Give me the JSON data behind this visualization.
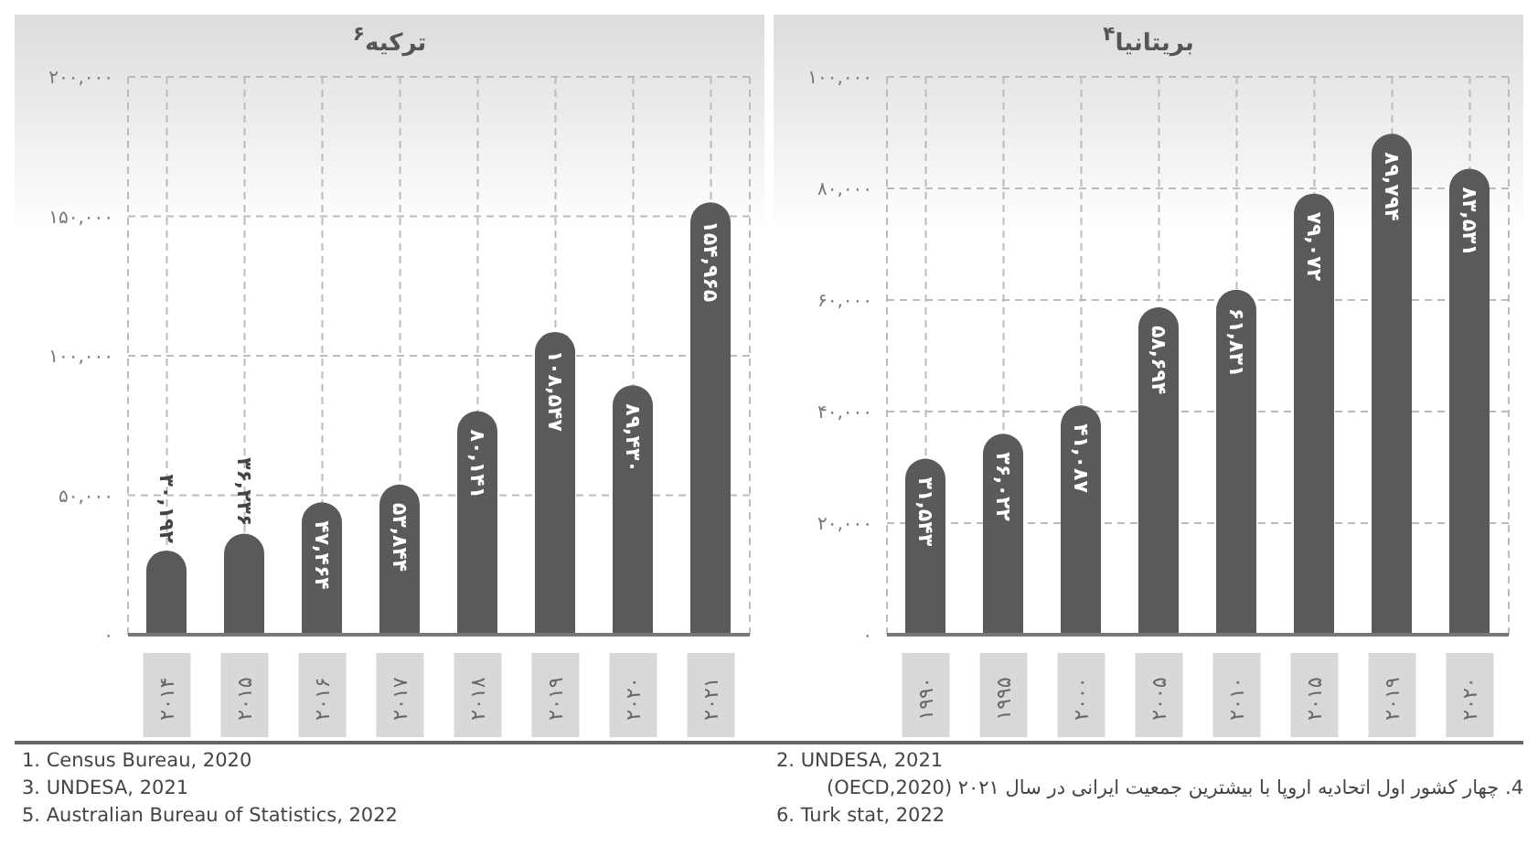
{
  "chart_data": [
    {
      "type": "bar",
      "title": "ترکیه$^{۶}$",
      "categories": [
        "۲۰۱۴",
        "۲۰۱۵",
        "۲۰۱۶",
        "۲۰۱۷",
        "۲۰۱۸",
        "۲۰۱۹",
        "۲۰۲۰",
        "۲۰۲۱"
      ],
      "values": [
        30192,
        36236,
        47464,
        53844,
        80141,
        108547,
        89430,
        154965
      ],
      "value_labels": [
        "۳۰,۱۹۲",
        "۳۶,۲۳۶",
        "۴۷,۴۶۴",
        "۵۳,۸۴۴",
        "۸۰,۱۴۱",
        "۱۰۸,۵۴۷",
        "۸۹,۴۳۰",
        "۱۵۴,۹۶۵"
      ],
      "color": "#5a5a5a",
      "ylim": [
        0,
        200000
      ],
      "yticks": [
        {
          "value": 0,
          "label": "۰"
        },
        {
          "value": 50000,
          "label": "۵۰,۰۰۰"
        },
        {
          "value": 100000,
          "label": "۱۰۰,۰۰۰"
        },
        {
          "value": 150000,
          "label": "۱۵۰,۰۰۰"
        },
        {
          "value": 200000,
          "label": "۲۰۰,۰۰۰"
        }
      ],
      "grid": true,
      "annotations": [
        "1. Census Bureau, 2020",
        "3. UNDESA, 2021",
        "5. Australian Bureau of Statistics, 2022"
      ]
    },
    {
      "type": "bar",
      "title": "بریتانیا$^{۴}$",
      "categories": [
        "۱۹۹۰",
        "۱۹۹۵",
        "۲۰۰۰",
        "۲۰۰۵",
        "۲۰۱۰",
        "۲۰۱۵",
        "۲۰۱۹",
        "۲۰۲۰"
      ],
      "values": [
        31543,
        36022,
        41087,
        58694,
        61831,
        79072,
        89794,
        83531
      ],
      "value_labels": [
        "۳۱,۵۴۳",
        "۳۶,۰۲۲",
        "۴۱,۰۸۷",
        "۵۸,۶۹۴",
        "۶۱,۸۳۱",
        "۷۹,۰۷۲",
        "۸۹,۷۹۴",
        "۸۳,۵۳۱"
      ],
      "color": "#5a5a5a",
      "ylim": [
        0,
        100000
      ],
      "yticks": [
        {
          "value": 0,
          "label": "۰"
        },
        {
          "value": 20000,
          "label": "۲۰,۰۰۰"
        },
        {
          "value": 40000,
          "label": "۴۰,۰۰۰"
        },
        {
          "value": 60000,
          "label": "۶۰,۰۰۰"
        },
        {
          "value": 80000,
          "label": "۸۰,۰۰۰"
        },
        {
          "value": 100000,
          "label": "۱۰۰,۰۰۰"
        }
      ],
      "grid": true,
      "annotations": [
        "2. UNDESA, 2021",
        "4. چهار کشور اول اتحادیه اروپا با بیشترین جمعیت ایرانی در سال ۲۰۲۱ (OECD,2020)",
        "6. Turk stat, 2022"
      ]
    }
  ]
}
